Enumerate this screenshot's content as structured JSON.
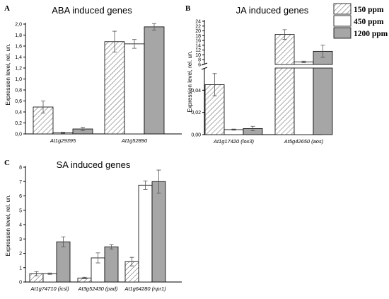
{
  "colors": {
    "s150": "hatched",
    "s450": "#ffffff",
    "s1200": "#a6a6a6",
    "error": "#555555"
  },
  "legend": {
    "items": [
      {
        "label": "150 ppm",
        "style": "hatched"
      },
      {
        "label": "450 ppm",
        "style": "white"
      },
      {
        "label": "1200 ppm",
        "style": "gray"
      }
    ]
  },
  "chart_data": [
    {
      "panel": "A",
      "type": "bar",
      "title": "ABA induced genes",
      "ylabel": "Expression level, rel. un.",
      "xlabel": "",
      "ylim": [
        0,
        2.0
      ],
      "yticks": [
        "0,0",
        "0,2",
        "0,4",
        "0,6",
        "0,8",
        "1,0",
        "1,2",
        "1,4",
        "1,6",
        "1,8",
        "2,0"
      ],
      "categories": [
        "At1g29395",
        "At1g52890"
      ],
      "series": [
        {
          "name": "150 ppm",
          "values": [
            0.49,
            1.68
          ],
          "err": [
            0.11,
            0.19
          ]
        },
        {
          "name": "450 ppm",
          "values": [
            0.02,
            1.64
          ],
          "err": [
            0.01,
            0.08
          ]
        },
        {
          "name": "1200 ppm",
          "values": [
            0.09,
            1.95
          ],
          "err": [
            0.03,
            0.06
          ]
        }
      ]
    },
    {
      "panel": "B",
      "type": "bar",
      "title": "JA induced genes",
      "ylabel": "Expression level, rel. un.",
      "xlabel": "",
      "broken_axis": {
        "lower": [
          0,
          0.06
        ],
        "upper": [
          6,
          24
        ]
      },
      "yticks_lower": [
        "0,00",
        "0,02",
        "0,04"
      ],
      "yticks_upper": [
        "6",
        "8",
        "10",
        "12",
        "14",
        "16",
        "18",
        "20",
        "22",
        "24"
      ],
      "categories": [
        "At1g17420 (lox3)",
        "At5g42650 (aos)"
      ],
      "series": [
        {
          "name": "150 ppm",
          "values": [
            0.045,
            18.5
          ],
          "err": [
            0.01,
            2.0
          ]
        },
        {
          "name": "450 ppm",
          "values": [
            0.0045,
            7.1
          ],
          "err": [
            0.0005,
            0.3
          ]
        },
        {
          "name": "1200 ppm",
          "values": [
            0.0055,
            11.5
          ],
          "err": [
            0.002,
            2.5
          ]
        }
      ]
    },
    {
      "panel": "C",
      "type": "bar",
      "title": "SA induced genes",
      "ylabel": "Expression level, rel. un.",
      "xlabel": "",
      "ylim": [
        0,
        8
      ],
      "yticks": [
        "0",
        "1",
        "2",
        "3",
        "4",
        "5",
        "6",
        "7",
        "8"
      ],
      "categories": [
        "At1g74710 (icsl)",
        "At3g52430 (pad)",
        "At1g64280 (npr1)"
      ],
      "series": [
        {
          "name": "150 ppm",
          "values": [
            0.58,
            0.28,
            1.42
          ],
          "err": [
            0.15,
            0.05,
            0.3
          ]
        },
        {
          "name": "450 ppm",
          "values": [
            0.58,
            1.68,
            6.75
          ],
          "err": [
            0.05,
            0.35,
            0.3
          ]
        },
        {
          "name": "1200 ppm",
          "values": [
            2.8,
            2.45,
            7.0
          ],
          "err": [
            0.35,
            0.15,
            0.8
          ]
        }
      ]
    }
  ]
}
